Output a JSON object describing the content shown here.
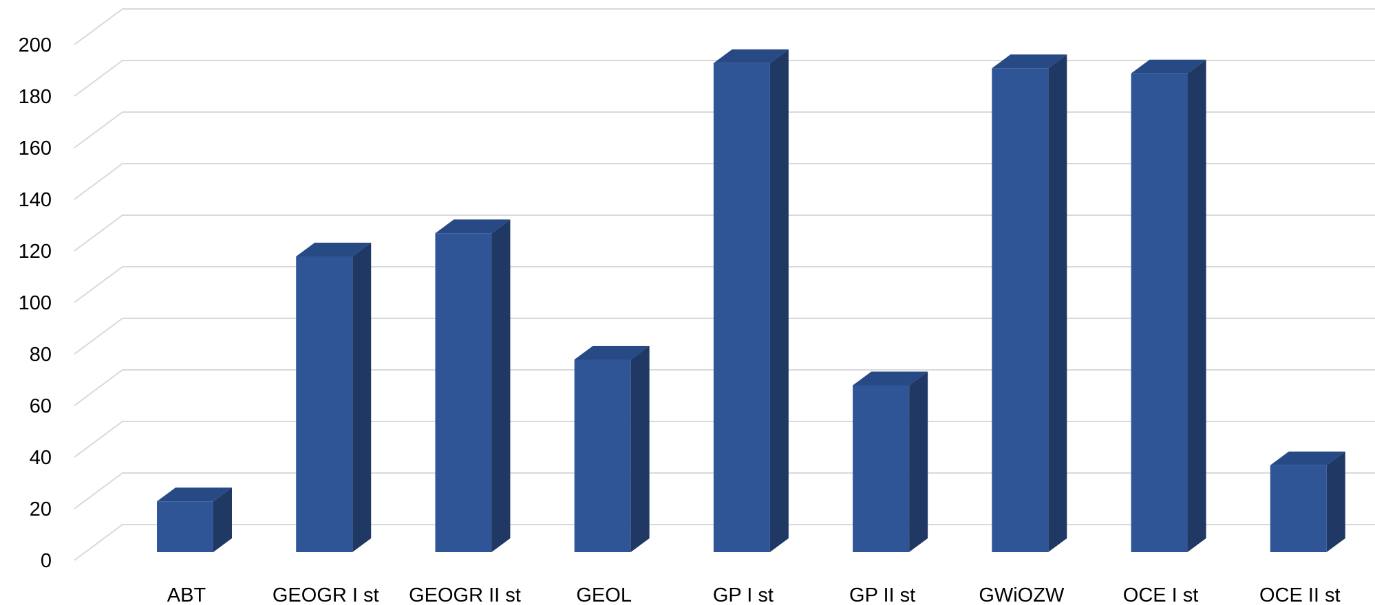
{
  "chart_data": {
    "type": "bar",
    "style": "3d-column",
    "categories": [
      "ABT",
      "GEOGR I st",
      "GEOGR II st",
      "GEOL",
      "GP I st",
      "GP II st",
      "GWiOZW",
      "OCE I st",
      "OCE II st"
    ],
    "values": [
      21,
      116,
      125,
      76,
      191,
      66,
      189,
      187,
      35
    ],
    "title": "",
    "xlabel": "",
    "ylabel": "",
    "ylim": [
      0,
      200
    ],
    "yticks": [
      0,
      20,
      40,
      60,
      80,
      100,
      120,
      140,
      160,
      180,
      200
    ],
    "grid": true,
    "legend": "none",
    "colors": {
      "bar_front": "#2f5597",
      "bar_side": "#203864",
      "bar_top": "#284a84",
      "grid": "#d9d9d9"
    }
  }
}
